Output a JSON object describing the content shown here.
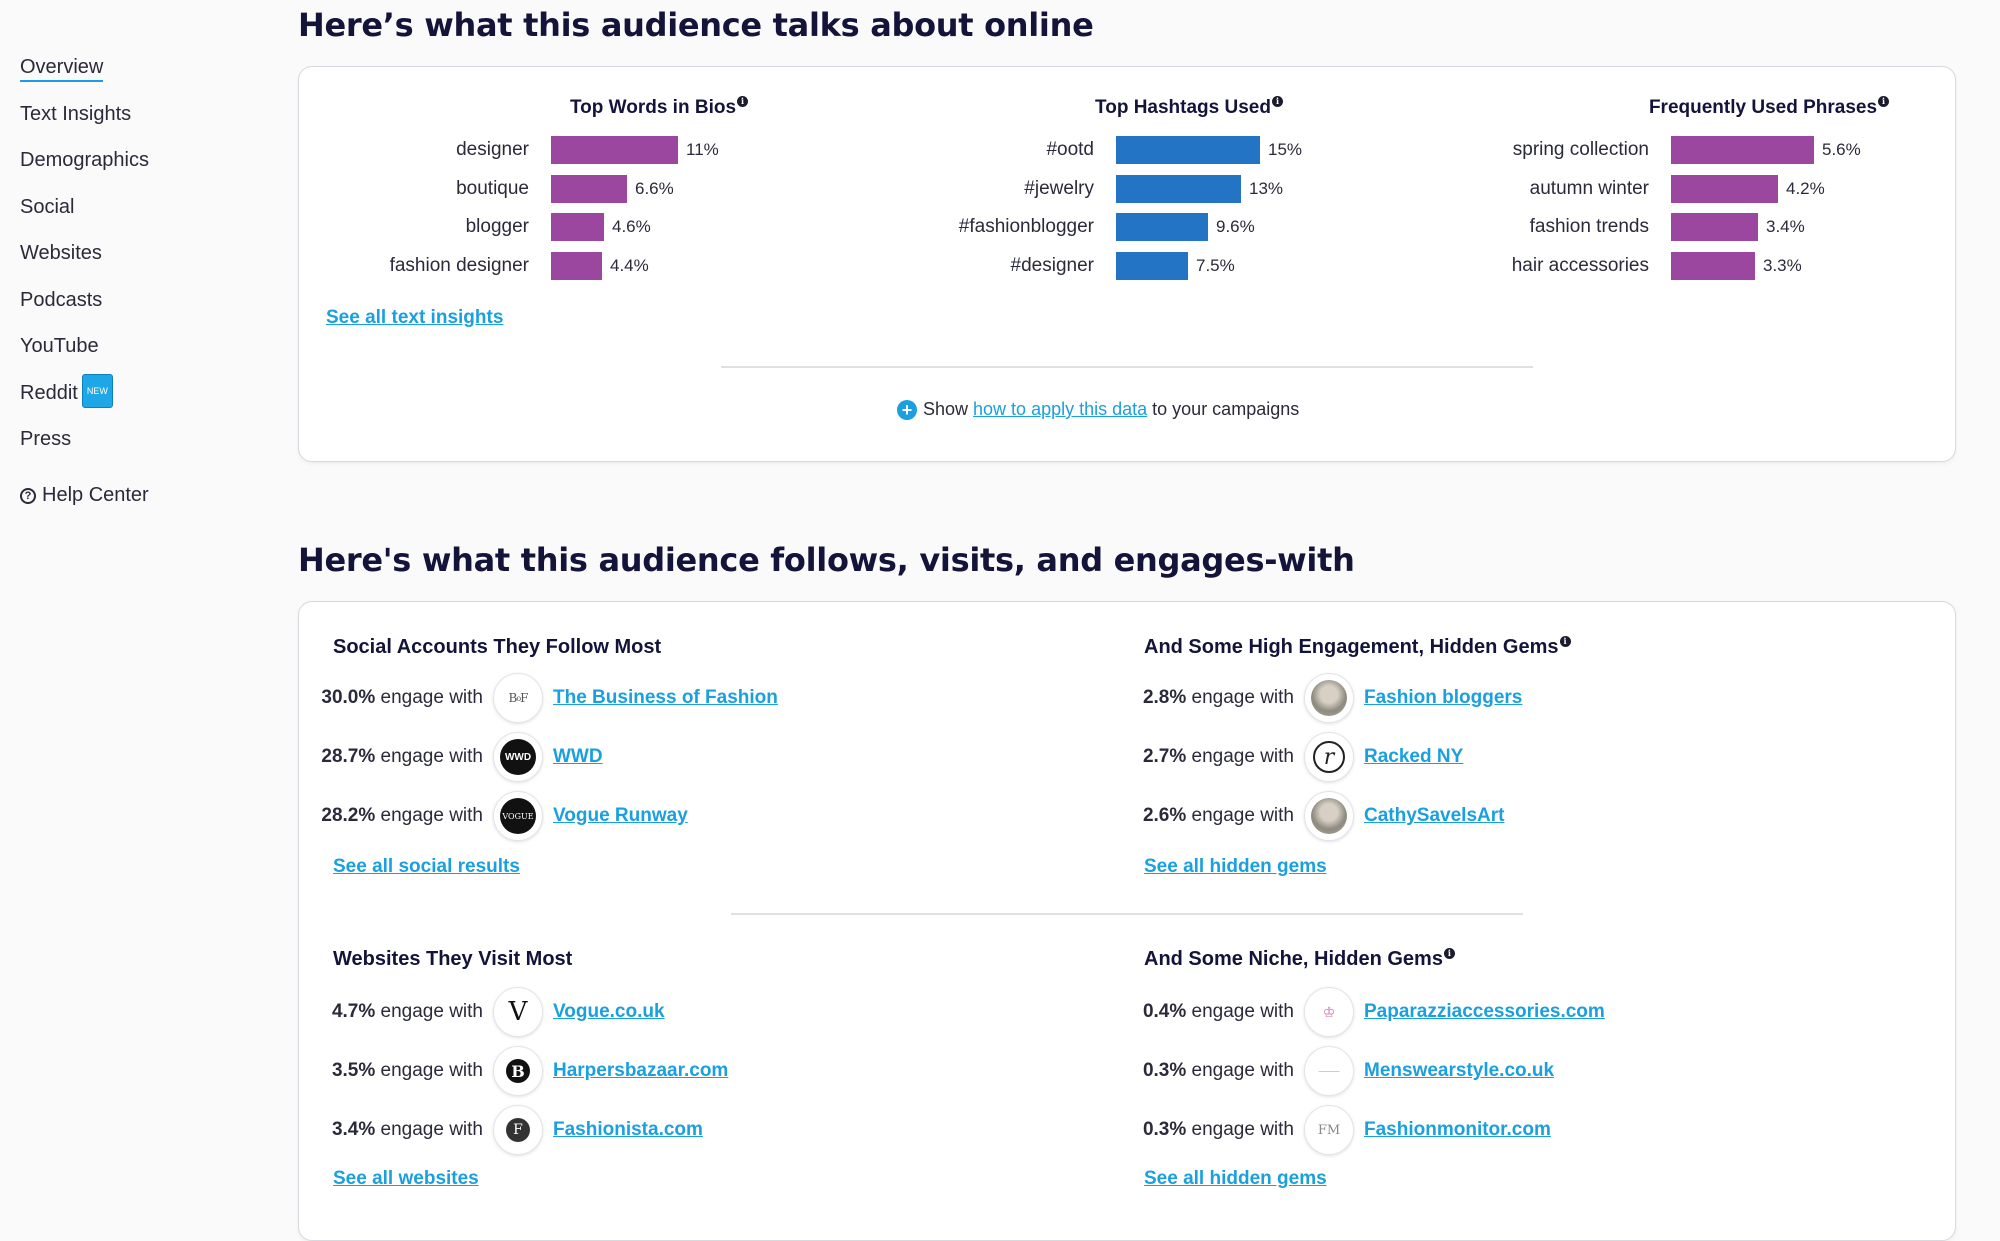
{
  "sidebar": {
    "items": [
      {
        "label": "Overview",
        "active": true
      },
      {
        "label": "Text Insights"
      },
      {
        "label": "Demographics"
      },
      {
        "label": "Social"
      },
      {
        "label": "Websites"
      },
      {
        "label": "Podcasts"
      },
      {
        "label": "YouTube"
      },
      {
        "label": "Reddit",
        "badge": "NEW"
      },
      {
        "label": "Press"
      }
    ],
    "help": "Help Center"
  },
  "talks": {
    "heading": "Here’s what this audience talks about online",
    "bios": {
      "title": "Top Words in Bios",
      "color": "#9b47a0",
      "rows": [
        {
          "label": "designer",
          "value": "11%",
          "pct": 11
        },
        {
          "label": "boutique",
          "value": "6.6%",
          "pct": 6.6
        },
        {
          "label": "blogger",
          "value": "4.6%",
          "pct": 4.6
        },
        {
          "label": "fashion designer",
          "value": "4.4%",
          "pct": 4.4
        }
      ]
    },
    "hashtags": {
      "title": "Top Hashtags Used",
      "color": "#2474c6",
      "rows": [
        {
          "label": "#ootd",
          "value": "15%",
          "pct": 15
        },
        {
          "label": "#jewelry",
          "value": "13%",
          "pct": 13
        },
        {
          "label": "#fashionblogger",
          "value": "9.6%",
          "pct": 9.6
        },
        {
          "label": "#designer",
          "value": "7.5%",
          "pct": 7.5
        }
      ]
    },
    "phrases": {
      "title": "Frequently Used Phrases",
      "color": "#9b47a0",
      "rows": [
        {
          "label": "spring collection",
          "value": "5.6%",
          "pct": 5.6
        },
        {
          "label": "autumn winter",
          "value": "4.2%",
          "pct": 4.2
        },
        {
          "label": "fashion trends",
          "value": "3.4%",
          "pct": 3.4
        },
        {
          "label": "hair accessories",
          "value": "3.3%",
          "pct": 3.3
        }
      ]
    },
    "see_all": "See all text insights",
    "apply": {
      "pre": "Show",
      "link": "how to apply this data",
      "post": "to your campaigns"
    }
  },
  "follows": {
    "heading": "Here's what this audience follows, visits, and engages-with",
    "social": {
      "title": "Social Accounts They Follow Most",
      "rows": [
        {
          "pct": "30.0%",
          "text": "engage with",
          "name": "The Business of Fashion",
          "icon": "bof-logo-icon"
        },
        {
          "pct": "28.7%",
          "text": "engage with",
          "name": "WWD",
          "icon": "wwd-logo-icon"
        },
        {
          "pct": "28.2%",
          "text": "engage with",
          "name": "Vogue Runway",
          "icon": "vogue-logo-icon"
        }
      ],
      "see_all": "See all social results"
    },
    "gems": {
      "title": "And Some High Engagement, Hidden Gems",
      "rows": [
        {
          "pct": "2.8%",
          "text": "engage with",
          "name": "Fashion bloggers",
          "icon": "photo-avatar-icon"
        },
        {
          "pct": "2.7%",
          "text": "engage with",
          "name": "Racked NY",
          "icon": "racked-logo-icon"
        },
        {
          "pct": "2.6%",
          "text": "engage with",
          "name": "CathySavelsArt",
          "icon": "photo-avatar-icon"
        }
      ],
      "see_all": "See all hidden gems"
    },
    "websites": {
      "title": "Websites They Visit Most",
      "rows": [
        {
          "pct": "4.7%",
          "text": "engage with",
          "name": "Vogue.co.uk",
          "icon": "vogue-v-icon"
        },
        {
          "pct": "3.5%",
          "text": "engage with",
          "name": "Harpersbazaar.com",
          "icon": "bazaar-b-icon"
        },
        {
          "pct": "3.4%",
          "text": "engage with",
          "name": "Fashionista.com",
          "icon": "fashionista-f-icon"
        }
      ],
      "see_all": "See all websites"
    },
    "niche": {
      "title": "And Some Niche, Hidden Gems",
      "rows": [
        {
          "pct": "0.4%",
          "text": "engage with",
          "name": "Paparazziaccessories.com",
          "icon": "paparazzi-logo-icon"
        },
        {
          "pct": "0.3%",
          "text": "engage with",
          "name": "Menswearstyle.co.uk",
          "icon": "menswear-logo-icon"
        },
        {
          "pct": "0.3%",
          "text": "engage with",
          "name": "Fashionmonitor.com",
          "icon": "fashionmonitor-logo-icon"
        }
      ],
      "see_all": "See all hidden gems"
    }
  }
}
